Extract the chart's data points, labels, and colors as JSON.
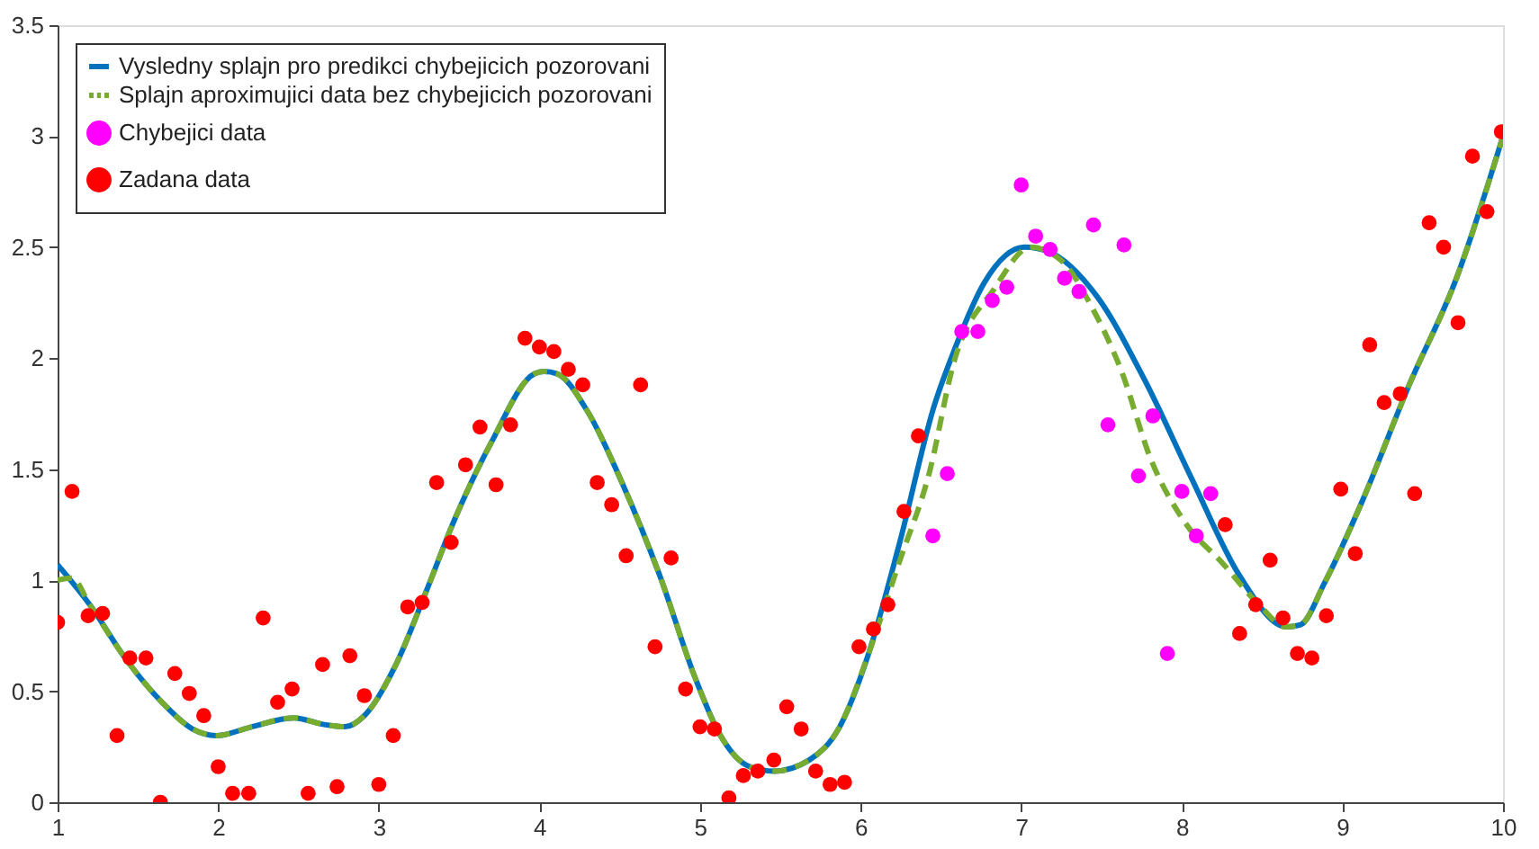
{
  "chart_data": {
    "type": "line",
    "xlim": [
      1,
      10
    ],
    "ylim": [
      0,
      3.5
    ],
    "xticks": [
      1,
      2,
      3,
      4,
      5,
      6,
      7,
      8,
      9,
      10
    ],
    "yticks": [
      0,
      0.5,
      1,
      1.5,
      2,
      2.5,
      3,
      3.5
    ],
    "grid": false,
    "legend": "top left",
    "series": [
      {
        "name": "Vysledny splajn pro predikci chybejicich pozorovani",
        "color": "#0072bd",
        "line_style": "solid",
        "marker": "none",
        "x": [
          1.0,
          1.2,
          1.43,
          1.65,
          1.84,
          1.99,
          2.21,
          2.47,
          2.66,
          2.79,
          2.91,
          3.1,
          3.29,
          3.47,
          3.7,
          3.97,
          4.03,
          4.11,
          4.3,
          4.52,
          4.75,
          4.97,
          5.12,
          5.31,
          5.46,
          5.68,
          5.87,
          6.05,
          6.24,
          6.46,
          6.58,
          6.77,
          7.02,
          7.17,
          7.47,
          7.77,
          8.06,
          8.36,
          8.65,
          8.74,
          8.89,
          9.12,
          9.41,
          9.71,
          10.0
        ],
        "values": [
          1.07,
          0.89,
          0.64,
          0.45,
          0.33,
          0.3,
          0.34,
          0.38,
          0.35,
          0.34,
          0.39,
          0.61,
          0.94,
          1.27,
          1.62,
          1.93,
          1.94,
          1.93,
          1.76,
          1.43,
          1.02,
          0.56,
          0.31,
          0.16,
          0.14,
          0.19,
          0.34,
          0.67,
          1.16,
          1.79,
          2.03,
          2.34,
          2.5,
          2.48,
          2.28,
          1.9,
          1.46,
          1.02,
          0.79,
          0.8,
          0.99,
          1.35,
          1.87,
          2.36,
          3.0
        ]
      },
      {
        "name": "Splajn aproximujici data bez chybejicich pozorovani",
        "color": "#77ac30",
        "line_style": "dashed",
        "marker": "none",
        "x": [
          1.0,
          1.09,
          1.2,
          1.43,
          1.65,
          1.84,
          1.99,
          2.21,
          2.47,
          2.66,
          2.79,
          2.91,
          3.1,
          3.29,
          3.47,
          3.7,
          3.97,
          4.03,
          4.11,
          4.3,
          4.52,
          4.75,
          4.97,
          5.12,
          5.31,
          5.46,
          5.68,
          5.87,
          6.05,
          6.24,
          6.43,
          6.58,
          6.83,
          7.06,
          7.25,
          7.44,
          7.62,
          7.81,
          8.03,
          8.25,
          8.48,
          8.65,
          8.74,
          8.89,
          9.12,
          9.41,
          9.71,
          10.0
        ],
        "values": [
          1.0,
          1.01,
          0.89,
          0.64,
          0.45,
          0.33,
          0.3,
          0.34,
          0.38,
          0.35,
          0.34,
          0.39,
          0.61,
          0.94,
          1.27,
          1.62,
          1.93,
          1.94,
          1.93,
          1.76,
          1.43,
          1.02,
          0.56,
          0.31,
          0.16,
          0.14,
          0.19,
          0.34,
          0.67,
          1.08,
          1.49,
          1.98,
          2.31,
          2.5,
          2.44,
          2.23,
          1.95,
          1.54,
          1.25,
          1.08,
          0.89,
          0.79,
          0.8,
          0.99,
          1.35,
          1.87,
          2.36,
          3.0
        ]
      },
      {
        "name": "Chybejici data",
        "color": "#ff00ff",
        "type": "scatter",
        "marker": "circle",
        "x": [
          6.45,
          6.54,
          6.63,
          6.73,
          6.82,
          6.91,
          7.0,
          7.09,
          7.18,
          7.27,
          7.36,
          7.45,
          7.54,
          7.64,
          7.73,
          7.82,
          7.91,
          8.0,
          8.09,
          8.18
        ],
        "values": [
          1.2,
          1.48,
          2.12,
          2.12,
          2.26,
          2.32,
          2.78,
          2.55,
          2.49,
          2.36,
          2.3,
          2.6,
          1.7,
          2.51,
          1.47,
          1.74,
          0.67,
          1.4,
          1.2,
          1.39
        ]
      },
      {
        "name": "Zadana data",
        "color": "#ff0000",
        "type": "scatter",
        "marker": "circle",
        "x": [
          1.0,
          1.09,
          1.19,
          1.28,
          1.37,
          1.45,
          1.55,
          1.64,
          1.73,
          1.82,
          1.91,
          2.0,
          2.09,
          2.19,
          2.28,
          2.37,
          2.46,
          2.56,
          2.65,
          2.74,
          2.82,
          2.91,
          3.0,
          3.09,
          3.18,
          3.27,
          3.36,
          3.45,
          3.54,
          3.63,
          3.73,
          3.82,
          3.91,
          4.0,
          4.09,
          4.18,
          4.27,
          4.36,
          4.45,
          4.54,
          4.63,
          4.72,
          4.82,
          4.91,
          5.0,
          5.09,
          5.18,
          5.27,
          5.36,
          5.46,
          5.54,
          5.63,
          5.72,
          5.81,
          5.9,
          5.99,
          6.08,
          6.17,
          6.27,
          6.36,
          8.27,
          8.36,
          8.46,
          8.55,
          8.63,
          8.72,
          8.81,
          8.9,
          8.99,
          9.08,
          9.17,
          9.26,
          9.36,
          9.45,
          9.54,
          9.63,
          9.72,
          9.81,
          9.9,
          9.99
        ],
        "values": [
          0.81,
          1.4,
          0.84,
          0.85,
          0.3,
          0.65,
          0.65,
          0.0,
          0.58,
          0.49,
          0.39,
          0.16,
          0.04,
          0.04,
          0.83,
          0.45,
          0.51,
          0.04,
          0.62,
          0.07,
          0.66,
          0.48,
          0.08,
          0.3,
          0.88,
          0.9,
          1.44,
          1.17,
          1.52,
          1.69,
          1.43,
          1.7,
          2.09,
          2.05,
          2.03,
          1.95,
          1.88,
          1.44,
          1.34,
          1.11,
          1.88,
          0.7,
          1.1,
          0.51,
          0.34,
          0.33,
          0.02,
          0.12,
          0.14,
          0.19,
          0.43,
          0.33,
          0.14,
          0.08,
          0.09,
          0.7,
          0.78,
          0.89,
          1.31,
          1.65,
          1.25,
          0.76,
          0.89,
          1.09,
          0.83,
          0.67,
          0.65,
          0.84,
          1.41,
          1.12,
          2.06,
          1.8,
          1.84,
          1.39,
          2.61,
          2.5,
          2.16,
          2.91,
          2.66,
          3.02
        ]
      }
    ]
  }
}
